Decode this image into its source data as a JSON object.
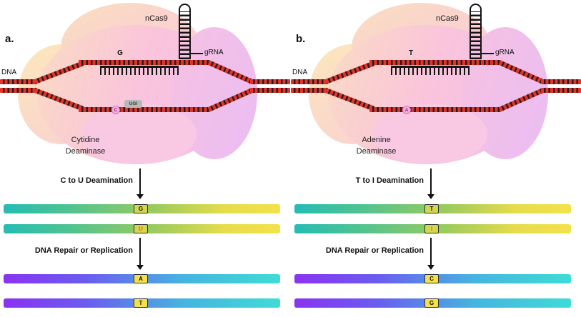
{
  "colors": {
    "dna_red": "#e73128",
    "dna_dark": "#1f1f1f",
    "cloud_peach": "#fbdcc2",
    "cloud_pink": "#f9c4dc",
    "cloud_violet": "#eabdf3",
    "bar_top_gradient": [
      "#25bcb4",
      "#9ccb5d",
      "#f3e24a"
    ],
    "bar_bottom_gradient": [
      "#8a33f2",
      "#3edcd6"
    ],
    "base_box_green": "#d2d74d",
    "base_box_yellow": "#f4e04b",
    "edited_base_color": "#e2691c",
    "base_circle_pink": "#f6aede",
    "ugi_gray": "#b8b8b8"
  },
  "panels": [
    {
      "panel_label": "a.",
      "protein_label": "nCas9",
      "grna_label": "gRNA",
      "dna_label": "DNA",
      "target_base_top": "G",
      "deaminated_base": "C",
      "ugi_label": "UGI",
      "enzyme_line1": "Cytidine",
      "enzyme_line2": "Deaminase",
      "step1_label": "C to U Deamination",
      "step2_label": "DNA Repair or Replication",
      "strand1_base": "G",
      "strand2_base": "U",
      "strand3_base": "A",
      "strand4_base": "T"
    },
    {
      "panel_label": "b.",
      "protein_label": "nCas9",
      "grna_label": "gRNA",
      "dna_label": "DNA",
      "target_base_top": "T",
      "deaminated_base": "A",
      "ugi_label": "",
      "enzyme_line1": "Adenine",
      "enzyme_line2": "Deaminase",
      "step1_label": "T to I Deamination",
      "step2_label": "DNA Repair or Replication",
      "strand1_base": "T",
      "strand2_base": "I",
      "strand3_base": "C",
      "strand4_base": "G"
    }
  ]
}
